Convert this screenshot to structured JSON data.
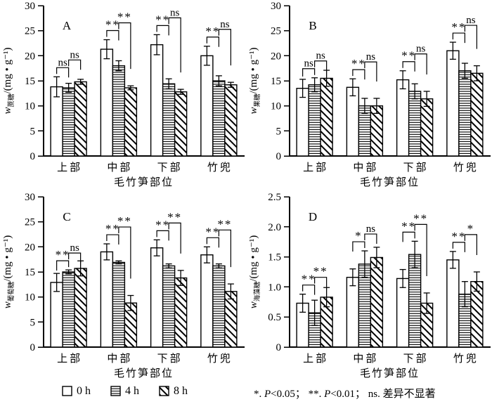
{
  "legend": {
    "items": [
      {
        "swatch": "open",
        "label": "0 h"
      },
      {
        "swatch": "hstripe",
        "label": "4 h"
      },
      {
        "swatch": "diagonal",
        "label": "8 h"
      }
    ]
  },
  "footnote": {
    "parts": [
      {
        "text": "*. "
      },
      {
        "text": "P",
        "italic": true
      },
      {
        "text": "<0.05； "
      },
      {
        "text": "**. "
      },
      {
        "text": "P",
        "italic": true
      },
      {
        "text": "<0.01； ns. 差异不显著"
      }
    ]
  },
  "chart_data": [
    {
      "type": "bar",
      "panel_label": "A",
      "ylabel": {
        "symbol": "w",
        "subscript": "蔗糖",
        "unit": "/(mg • g⁻¹)"
      },
      "xlabel": "毛竹笋部位",
      "categories": [
        "上部",
        "中部",
        "下部",
        "竹兜"
      ],
      "ylim": [
        0,
        30
      ],
      "yticks": [
        "0",
        "5",
        "10",
        "15",
        "20",
        "25",
        "30"
      ],
      "series": [
        {
          "name": "0 h",
          "pattern": "open",
          "values": [
            13.8,
            21.3,
            22.2,
            20.0
          ],
          "errors": [
            2.0,
            1.9,
            2.0,
            1.9
          ]
        },
        {
          "name": "4 h",
          "pattern": "hstripe",
          "values": [
            13.6,
            18.0,
            14.4,
            15.0
          ],
          "errors": [
            0.9,
            1.0,
            1.0,
            1.0
          ]
        },
        {
          "name": "8 h",
          "pattern": "diagonal",
          "values": [
            14.8,
            13.6,
            12.8,
            14.2
          ],
          "errors": [
            0.5,
            0.4,
            0.5,
            0.5
          ]
        }
      ],
      "significance": [
        {
          "category": "上部",
          "bar0h_vs_4h": "ns",
          "vs_8h": "ns"
        },
        {
          "category": "中部",
          "bar0h_vs_4h": "**",
          "vs_8h": "**"
        },
        {
          "category": "下部",
          "bar0h_vs_4h": "**",
          "vs_8h": "ns"
        },
        {
          "category": "竹兜",
          "bar0h_vs_4h": "**",
          "vs_8h": "ns"
        }
      ]
    },
    {
      "type": "bar",
      "panel_label": "B",
      "ylabel": {
        "symbol": "w",
        "subscript": "果糖",
        "unit": "/(mg • g⁻¹)"
      },
      "xlabel": "毛竹笋部位",
      "categories": [
        "上部",
        "中部",
        "下部",
        "竹兜"
      ],
      "ylim": [
        0,
        30
      ],
      "yticks": [
        "0",
        "5",
        "10",
        "15",
        "20",
        "25",
        "30"
      ],
      "series": [
        {
          "name": "0 h",
          "pattern": "open",
          "values": [
            13.5,
            13.7,
            15.2,
            21.0
          ],
          "errors": [
            1.8,
            1.7,
            1.8,
            1.7
          ]
        },
        {
          "name": "4 h",
          "pattern": "hstripe",
          "values": [
            14.2,
            10.0,
            12.9,
            17.0
          ],
          "errors": [
            1.4,
            1.5,
            1.5,
            1.5
          ]
        },
        {
          "name": "8 h",
          "pattern": "diagonal",
          "values": [
            15.5,
            10.0,
            11.4,
            16.5
          ],
          "errors": [
            1.6,
            1.5,
            1.5,
            1.5
          ]
        }
      ],
      "significance": [
        {
          "category": "上部",
          "bar0h_vs_4h": "ns",
          "vs_8h": "ns"
        },
        {
          "category": "中部",
          "bar0h_vs_4h": "**",
          "vs_8h": "ns"
        },
        {
          "category": "下部",
          "bar0h_vs_4h": "**",
          "vs_8h": "ns"
        },
        {
          "category": "竹兜",
          "bar0h_vs_4h": "**",
          "vs_8h": "ns"
        }
      ]
    },
    {
      "type": "bar",
      "panel_label": "C",
      "ylabel": {
        "symbol": "w",
        "subscript": "葡萄糖",
        "unit": "/(mg • g⁻¹)"
      },
      "xlabel": "毛竹笋部位",
      "categories": [
        "上部",
        "中部",
        "下部",
        "竹兜"
      ],
      "ylim": [
        0,
        30
      ],
      "yticks": [
        "0",
        "5",
        "10",
        "15",
        "20",
        "25",
        "30"
      ],
      "series": [
        {
          "name": "0 h",
          "pattern": "open",
          "values": [
            12.9,
            19.0,
            19.8,
            18.4
          ],
          "errors": [
            1.8,
            1.6,
            1.6,
            1.6
          ]
        },
        {
          "name": "4 h",
          "pattern": "hstripe",
          "values": [
            15.0,
            16.9,
            16.2,
            16.2
          ],
          "errors": [
            0.4,
            0.3,
            0.4,
            0.4
          ]
        },
        {
          "name": "8 h",
          "pattern": "diagonal",
          "values": [
            15.7,
            8.8,
            13.8,
            11.1
          ],
          "errors": [
            1.5,
            1.5,
            1.5,
            1.5
          ]
        }
      ],
      "significance": [
        {
          "category": "上部",
          "bar0h_vs_4h": "**",
          "vs_8h": "ns"
        },
        {
          "category": "中部",
          "bar0h_vs_4h": "**",
          "vs_8h": "**"
        },
        {
          "category": "下部",
          "bar0h_vs_4h": "**",
          "vs_8h": "**"
        },
        {
          "category": "竹兜",
          "bar0h_vs_4h": "**",
          "vs_8h": "**"
        }
      ]
    },
    {
      "type": "bar",
      "panel_label": "D",
      "ylabel": {
        "symbol": "w",
        "subscript": "海藻糖",
        "unit": "/(mg • g⁻¹)"
      },
      "xlabel": "毛竹笋部位",
      "categories": [
        "上部",
        "中部",
        "下部",
        "竹兜"
      ],
      "ylim": [
        0,
        2.5
      ],
      "yticks": [
        "0",
        "0.5",
        "1.0",
        "1.5",
        "2.0",
        "2.5"
      ],
      "series": [
        {
          "name": "0 h",
          "pattern": "open",
          "values": [
            0.73,
            1.16,
            1.14,
            1.45
          ],
          "errors": [
            0.15,
            0.14,
            0.15,
            0.14
          ]
        },
        {
          "name": "4 h",
          "pattern": "hstripe",
          "values": [
            0.57,
            1.38,
            1.54,
            0.88
          ],
          "errors": [
            0.21,
            0.22,
            0.22,
            0.21
          ]
        },
        {
          "name": "8 h",
          "pattern": "diagonal",
          "values": [
            0.83,
            1.49,
            0.73,
            1.09
          ],
          "errors": [
            0.16,
            0.17,
            0.17,
            0.16
          ]
        }
      ],
      "significance": [
        {
          "category": "上部",
          "bar0h_vs_4h": "**",
          "vs_8h": "**"
        },
        {
          "category": "中部",
          "bar0h_vs_4h": "*",
          "vs_8h": "ns"
        },
        {
          "category": "下部",
          "bar0h_vs_4h": "**",
          "vs_8h": "**"
        },
        {
          "category": "竹兜",
          "bar0h_vs_4h": "**",
          "vs_8h": "*"
        }
      ]
    }
  ]
}
